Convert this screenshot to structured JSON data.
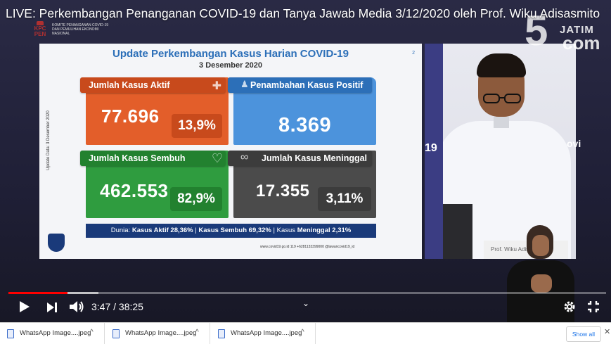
{
  "player": {
    "title": "LIVE: Perkembangan Penanganan COVID-19 dan Tanya Jawab Media 3/12/2020 oleh Prof. Wiku Adisasmito",
    "time": "3:47 / 38:25",
    "progress_played": 0.099,
    "progress_buffered": 0.15
  },
  "watermark": {
    "org_short": "KPC PEN",
    "org_long": "KOMITE PENANGANAN COVID-19 DAN PEMULIHAN EKONOMI NASIONAL",
    "channel_num": "5",
    "channel_name": "JATIM",
    "channel_suffix": "com"
  },
  "slide": {
    "title": "Update Perkembangan Kasus Harian COVID-19",
    "date": "3 Desember 2020",
    "page": "2",
    "side_note": "Update Data: 3 Desember 2020",
    "cards": {
      "aktif": {
        "label": "Jumlah Kasus Aktif",
        "value": "77.696",
        "pct": "13,9%"
      },
      "positif": {
        "label": "Penambahan Kasus Positif",
        "value": "8.369"
      },
      "sembuh": {
        "label": "Jumlah Kasus Sembuh",
        "value": "462.553",
        "pct": "82,9%"
      },
      "meninggal": {
        "label": "Jumlah Kasus Meninggal",
        "value": "17.355",
        "pct": "3,11%"
      }
    },
    "footer": {
      "prefix": "Dunia: ",
      "aktif": "Kasus Aktif 28,36%",
      "sep1": " | ",
      "sembuh": "Kasus Sembuh 69,32%",
      "sep2": " | ",
      "meninggal_prefix": "Kasus ",
      "meninggal": "Meninggal 2,31%"
    },
    "links": "www.covid19.go.id    119    +6281133399000    @lawancovid19_id"
  },
  "speaker": {
    "nameplate": "Prof. Wiku Adisasmito",
    "bg_text_left": "19",
    "bg_text_right": "ovi"
  },
  "downloads": {
    "items": [
      {
        "name": "WhatsApp Image....jpeg"
      },
      {
        "name": "WhatsApp Image....jpeg"
      },
      {
        "name": "WhatsApp Image....jpeg"
      }
    ],
    "show_all": "Show all"
  },
  "colors": {
    "aktif": "#e35e2a",
    "positif": "#4c93dc",
    "sembuh": "#2f9c3f",
    "meninggal": "#4b4b4b",
    "progress": "#ff0000"
  }
}
